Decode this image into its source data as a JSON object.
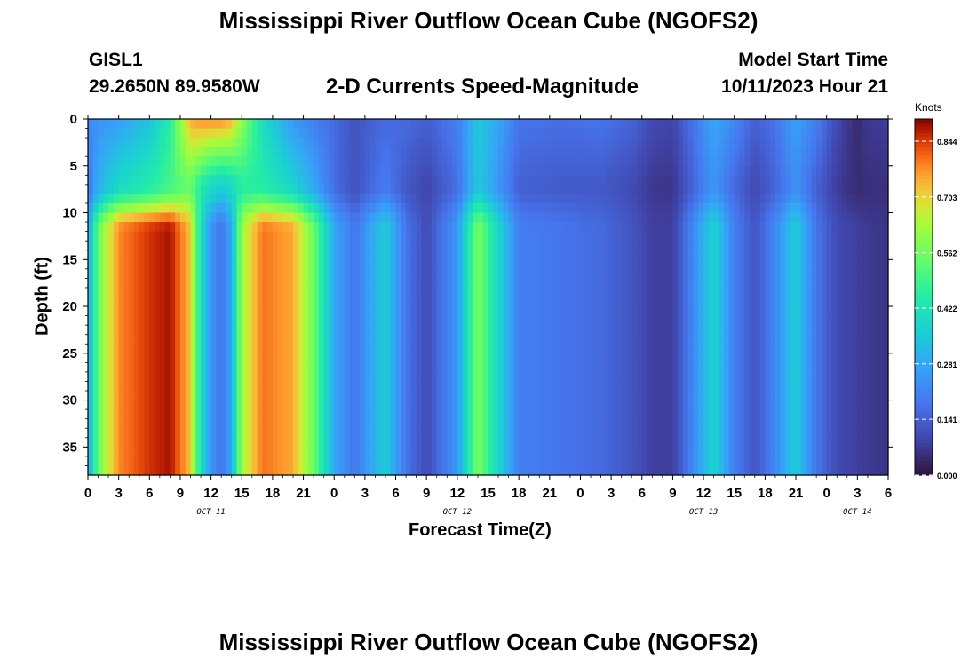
{
  "page": {
    "title": "Mississippi River Outflow Ocean Cube (NGOFS2)",
    "title_bottom": "Mississippi River Outflow Ocean Cube (NGOFS2)",
    "station": "GISL1",
    "coords": "29.2650N  89.9580W",
    "variable": "2-D Currents Speed-Magnitude",
    "model_start_label": "Model Start Time",
    "model_start_value": "10/11/2023 Hour 21"
  },
  "chart_data": {
    "type": "heatmap",
    "title": "2-D Currents Speed-Magnitude",
    "xlabel": "Forecast Time(Z)",
    "ylabel": "Depth (ft)",
    "x_tick_labels": [
      "0",
      "3",
      "6",
      "9",
      "12",
      "15",
      "18",
      "21",
      "0",
      "3",
      "6",
      "9",
      "12",
      "15",
      "18",
      "21",
      "0",
      "3",
      "6",
      "9",
      "12",
      "15",
      "18",
      "21",
      "0",
      "3",
      "6"
    ],
    "x_range_hours": [
      0,
      78
    ],
    "date_labels": [
      {
        "text": "OCT 11",
        "hour": 12
      },
      {
        "text": "OCT 12",
        "hour": 36
      },
      {
        "text": "OCT 13",
        "hour": 60
      },
      {
        "text": "OCT 14",
        "hour": 75
      }
    ],
    "y_ticks": [
      0,
      5,
      10,
      15,
      20,
      25,
      30,
      35
    ],
    "y_range_ft": [
      0,
      38
    ],
    "y_inverted": true,
    "colorbar": {
      "units": "Knots",
      "range": [
        0,
        0.9
      ],
      "tick_labels": [
        "0.844",
        "0.703",
        "0.562",
        "0.422",
        "0.281",
        "0.141",
        "0.000"
      ],
      "tick_values": [
        0.844,
        0.703,
        0.562,
        0.422,
        0.281,
        0.141,
        0.0
      ],
      "colormap": "turbo"
    },
    "speed_by_hour_knots": [
      {
        "hour": 0,
        "surface": 0.22,
        "deep": 0.25
      },
      {
        "hour": 1,
        "surface": 0.24,
        "deep": 0.55
      },
      {
        "hour": 3,
        "surface": 0.26,
        "deep": 0.78
      },
      {
        "hour": 6,
        "surface": 0.33,
        "deep": 0.85
      },
      {
        "hour": 8,
        "surface": 0.45,
        "deep": 0.88
      },
      {
        "hour": 10,
        "surface": 0.75,
        "deep": 0.72
      },
      {
        "hour": 11,
        "surface": 0.78,
        "deep": 0.4
      },
      {
        "hour": 12,
        "surface": 0.78,
        "deep": 0.25
      },
      {
        "hour": 13,
        "surface": 0.78,
        "deep": 0.17
      },
      {
        "hour": 14,
        "surface": 0.75,
        "deep": 0.28
      },
      {
        "hour": 15,
        "surface": 0.6,
        "deep": 0.62
      },
      {
        "hour": 17,
        "surface": 0.4,
        "deep": 0.8
      },
      {
        "hour": 20,
        "surface": 0.25,
        "deep": 0.75
      },
      {
        "hour": 22,
        "surface": 0.2,
        "deep": 0.55
      },
      {
        "hour": 24,
        "surface": 0.16,
        "deep": 0.28
      },
      {
        "hour": 26,
        "surface": 0.12,
        "deep": 0.18
      },
      {
        "hour": 29,
        "surface": 0.16,
        "deep": 0.36
      },
      {
        "hour": 31,
        "surface": 0.16,
        "deep": 0.18
      },
      {
        "hour": 33,
        "surface": 0.14,
        "deep": 0.1
      },
      {
        "hour": 36,
        "surface": 0.2,
        "deep": 0.25
      },
      {
        "hour": 38,
        "surface": 0.35,
        "deep": 0.58
      },
      {
        "hour": 40,
        "surface": 0.28,
        "deep": 0.38
      },
      {
        "hour": 42,
        "surface": 0.18,
        "deep": 0.2
      },
      {
        "hour": 46,
        "surface": 0.17,
        "deep": 0.18
      },
      {
        "hour": 50,
        "surface": 0.18,
        "deep": 0.16
      },
      {
        "hour": 53,
        "surface": 0.15,
        "deep": 0.12
      },
      {
        "hour": 55,
        "surface": 0.1,
        "deep": 0.08
      },
      {
        "hour": 57,
        "surface": 0.09,
        "deep": 0.08
      },
      {
        "hour": 59,
        "surface": 0.18,
        "deep": 0.22
      },
      {
        "hour": 61,
        "surface": 0.28,
        "deep": 0.38
      },
      {
        "hour": 63,
        "surface": 0.22,
        "deep": 0.2
      },
      {
        "hour": 65,
        "surface": 0.14,
        "deep": 0.12
      },
      {
        "hour": 67,
        "surface": 0.18,
        "deep": 0.22
      },
      {
        "hour": 69,
        "surface": 0.27,
        "deep": 0.36
      },
      {
        "hour": 71,
        "surface": 0.2,
        "deep": 0.18
      },
      {
        "hour": 73,
        "surface": 0.1,
        "deep": 0.1
      },
      {
        "hour": 75,
        "surface": 0.04,
        "deep": 0.08
      },
      {
        "hour": 76,
        "surface": 0.07,
        "deep": 0.07
      },
      {
        "hour": 78,
        "surface": 0.08,
        "deep": 0.06
      }
    ]
  }
}
